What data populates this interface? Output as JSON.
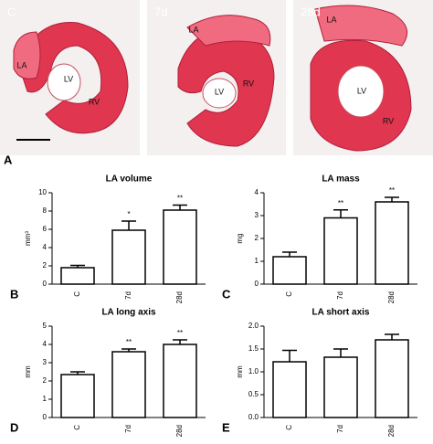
{
  "panel_a": {
    "letter": "A",
    "images": [
      {
        "label": "C",
        "regions": [
          "LA",
          "LV",
          "RV"
        ]
      },
      {
        "label": "7d",
        "regions": [
          "LA",
          "LV",
          "RV"
        ]
      },
      {
        "label": "28d",
        "regions": [
          "LA",
          "LV",
          "RV"
        ]
      }
    ]
  },
  "chart_data": [
    {
      "type": "bar",
      "panel": "B",
      "title": "LA volume",
      "ylabel": "mm³",
      "categories": [
        "C",
        "7d",
        "28d"
      ],
      "values": [
        1.8,
        5.9,
        8.1
      ],
      "errors": [
        0.25,
        1.0,
        0.55
      ],
      "annotations": [
        null,
        "*",
        "**"
      ],
      "ylim": [
        0,
        10
      ],
      "yticks": [
        0,
        2,
        4,
        6,
        8,
        10
      ],
      "color": "#ffffff"
    },
    {
      "type": "bar",
      "panel": "C",
      "title": "LA mass",
      "ylabel": "mg",
      "categories": [
        "C",
        "7d",
        "28d"
      ],
      "values": [
        1.2,
        2.9,
        3.6
      ],
      "errors": [
        0.2,
        0.35,
        0.2
      ],
      "annotations": [
        null,
        "**",
        "**"
      ],
      "ylim": [
        0,
        4
      ],
      "yticks": [
        0,
        1,
        2,
        3,
        4
      ],
      "color": "#ffffff"
    },
    {
      "type": "bar",
      "panel": "D",
      "title": "LA long axis",
      "ylabel": "mm",
      "categories": [
        "C",
        "7d",
        "28d"
      ],
      "values": [
        2.35,
        3.6,
        4.0
      ],
      "errors": [
        0.15,
        0.15,
        0.25
      ],
      "annotations": [
        null,
        "**",
        "**"
      ],
      "ylim": [
        0,
        5
      ],
      "yticks": [
        0,
        1,
        2,
        3,
        4,
        5
      ],
      "color": "#ffffff"
    },
    {
      "type": "bar",
      "panel": "E",
      "title": "LA short axis",
      "ylabel": "mm",
      "categories": [
        "C",
        "7d",
        "28d"
      ],
      "values": [
        1.22,
        1.32,
        1.7
      ],
      "errors": [
        0.25,
        0.18,
        0.12
      ],
      "ylim": [
        0,
        2
      ],
      "yticks": [
        {
          "value": 0,
          "label": "0.0"
        },
        0.5,
        {
          "value": 1,
          "label": "1.0"
        },
        1.5,
        {
          "value": 2,
          "label": "2.0"
        }
      ],
      "color": "#ffffff"
    }
  ]
}
